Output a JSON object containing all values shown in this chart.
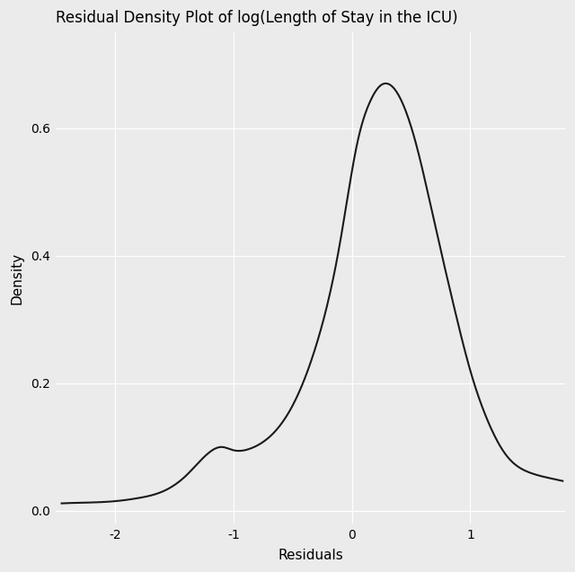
{
  "title": "Residual Density Plot of log(Length of Stay in the ICU)",
  "xlabel": "Residuals",
  "ylabel": "Density",
  "xlim": [
    -2.5,
    1.8
  ],
  "ylim": [
    -0.02,
    0.75
  ],
  "xticks": [
    -2,
    -1,
    0,
    1
  ],
  "yticks": [
    0.0,
    0.2,
    0.4,
    0.6
  ],
  "background_color": "#EBEBEB",
  "grid_color": "#FFFFFF",
  "line_color": "#1a1a1a",
  "line_width": 1.5,
  "title_fontsize": 12,
  "label_fontsize": 11,
  "tick_fontsize": 10,
  "curve_x": [
    -2.4,
    -2.2,
    -2.0,
    -1.8,
    -1.6,
    -1.4,
    -1.2,
    -1.1,
    -1.0,
    -0.85,
    -0.7,
    -0.5,
    -0.3,
    -0.1,
    0.05,
    0.15,
    0.25,
    0.4,
    0.55,
    0.7,
    0.85,
    1.0,
    1.15,
    1.3,
    1.5,
    1.65,
    1.75
  ],
  "curve_y": [
    0.012,
    0.013,
    0.015,
    0.02,
    0.03,
    0.055,
    0.092,
    0.1,
    0.095,
    0.098,
    0.115,
    0.165,
    0.26,
    0.42,
    0.58,
    0.64,
    0.668,
    0.65,
    0.57,
    0.45,
    0.33,
    0.22,
    0.14,
    0.088,
    0.06,
    0.052,
    0.048
  ]
}
